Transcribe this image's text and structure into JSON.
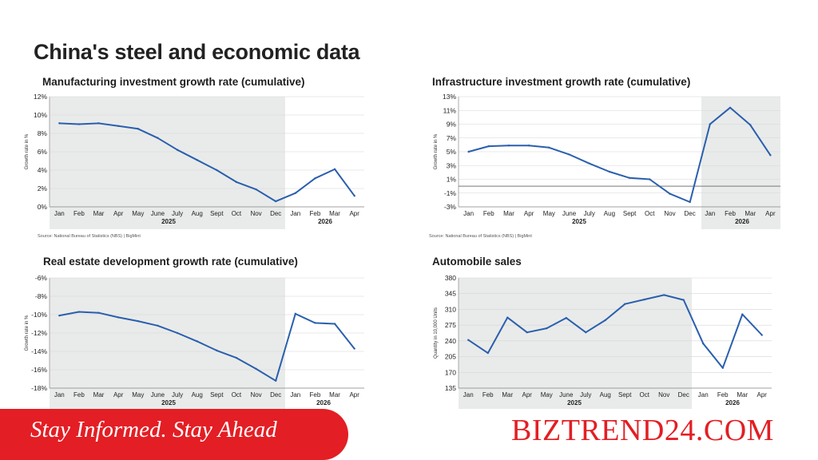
{
  "page": {
    "title": "China's steel and economic data"
  },
  "footer": {
    "tagline": "Stay Informed. Stay Ahead",
    "brand": "BIZTREND24.COM"
  },
  "colors": {
    "line": "#2a5fae",
    "shade": "#e9ebea",
    "brand_red": "#e31e24"
  },
  "chart_data": [
    {
      "type": "line",
      "title": "Manufacturing investment growth rate (cumulative)",
      "ylabel": "Growth rate in %",
      "source": "Source: National Bureau of Statistics (NBS) | BigMint",
      "categories": [
        "Jan",
        "Feb",
        "Mar",
        "Apr",
        "May",
        "June",
        "July",
        "Aug",
        "Sept",
        "Oct",
        "Nov",
        "Dec",
        "Jan",
        "Feb",
        "Mar",
        "Apr"
      ],
      "year_labels": [
        "2025",
        "2026"
      ],
      "values": [
        9.1,
        9.0,
        9.1,
        8.8,
        8.5,
        7.5,
        6.2,
        5.1,
        4.0,
        2.7,
        1.9,
        0.6,
        1.5,
        3.1,
        4.1,
        1.2
      ],
      "ylim": [
        0,
        12
      ],
      "yticks": [
        "0%",
        "2%",
        "4%",
        "6%",
        "8%",
        "10%",
        "12%"
      ],
      "shaded_year": "2025",
      "grid": true
    },
    {
      "type": "line",
      "title": "Infrastructure investment growth rate (cumulative)",
      "ylabel": "Growth rate in %",
      "source": "Source: National Bureau of Statistics (NBS) | BigMint",
      "categories": [
        "Jan",
        "Feb",
        "Mar",
        "Apr",
        "May",
        "June",
        "July",
        "Aug",
        "Sept",
        "Oct",
        "Nov",
        "Dec",
        "Jan",
        "Feb",
        "Mar",
        "Apr"
      ],
      "year_labels": [
        "2025",
        "2026"
      ],
      "values": [
        5.0,
        5.8,
        5.9,
        5.9,
        5.6,
        4.6,
        3.3,
        2.1,
        1.2,
        1.0,
        -1.1,
        -2.3,
        9.0,
        11.4,
        8.9,
        4.5
      ],
      "ylim": [
        -3,
        13
      ],
      "yticks": [
        "-3%",
        "-1%",
        "1%",
        "3%",
        "5%",
        "7%",
        "9%",
        "11%",
        "13%"
      ],
      "shaded_year": "2026",
      "grid": true
    },
    {
      "type": "line",
      "title": "Real estate development growth rate (cumulative)",
      "ylabel": "Growth rate in %",
      "categories": [
        "Jan",
        "Feb",
        "Mar",
        "Apr",
        "May",
        "June",
        "July",
        "Aug",
        "Sept",
        "Oct",
        "Nov",
        "Dec",
        "Jan",
        "Feb",
        "Mar",
        "Apr"
      ],
      "year_labels": [
        "2025",
        "2026"
      ],
      "values": [
        -10.1,
        -9.7,
        -9.8,
        -10.3,
        -10.7,
        -11.2,
        -12.0,
        -12.9,
        -13.9,
        -14.7,
        -15.9,
        -17.2,
        -9.9,
        -10.9,
        -11.0,
        -13.7
      ],
      "ylim": [
        -18,
        -6
      ],
      "yticks": [
        "-18%",
        "-16%",
        "-14%",
        "-12%",
        "-10%",
        "-8%",
        "-6%"
      ],
      "shaded_year": "2025",
      "grid": true
    },
    {
      "type": "line",
      "title": "Automobile sales",
      "ylabel": "Quantity in 10,000 Units",
      "categories": [
        "Jan",
        "Feb",
        "Mar",
        "Apr",
        "May",
        "June",
        "July",
        "Aug",
        "Sept",
        "Oct",
        "Nov",
        "Dec",
        "Jan",
        "Feb",
        "Mar",
        "Apr"
      ],
      "year_labels": [
        "2025",
        "2026"
      ],
      "values": [
        242,
        213,
        292,
        259,
        268,
        291,
        259,
        286,
        322,
        332,
        342,
        331,
        234,
        180,
        299,
        253
      ],
      "ylim": [
        135,
        380
      ],
      "yticks": [
        "135",
        "170",
        "205",
        "240",
        "275",
        "310",
        "345",
        "380"
      ],
      "shaded_year": "2025",
      "grid": true
    }
  ]
}
